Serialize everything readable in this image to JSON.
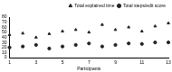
{
  "chart_data": {
    "type": "scatter",
    "x_label": "Participants",
    "xlim": [
      1,
      13
    ],
    "xticks": [
      1,
      3,
      5,
      7,
      9,
      11,
      13
    ],
    "ylim": [
      0,
      80
    ],
    "yticks": [
      0,
      10,
      20,
      30,
      40,
      50,
      60,
      70,
      80
    ],
    "grid": false,
    "legend": "upper right",
    "series": [
      {
        "name": "Total explained time",
        "color": "#222222",
        "marker": "triangle",
        "x": [
          1,
          2,
          3,
          4,
          5,
          6,
          7,
          8,
          9,
          10,
          11,
          12,
          13
        ],
        "values": [
          45,
          48,
          40,
          47,
          52,
          55,
          50,
          65,
          55,
          60,
          52,
          62,
          68
        ]
      },
      {
        "name": "Total steps/edit score",
        "color": "#222222",
        "marker": "circle",
        "x": [
          1,
          2,
          3,
          4,
          5,
          6,
          7,
          8,
          9,
          10,
          11,
          12,
          13
        ],
        "values": [
          20,
          22,
          25,
          18,
          22,
          25,
          28,
          22,
          25,
          28,
          27,
          30,
          30
        ]
      }
    ]
  }
}
